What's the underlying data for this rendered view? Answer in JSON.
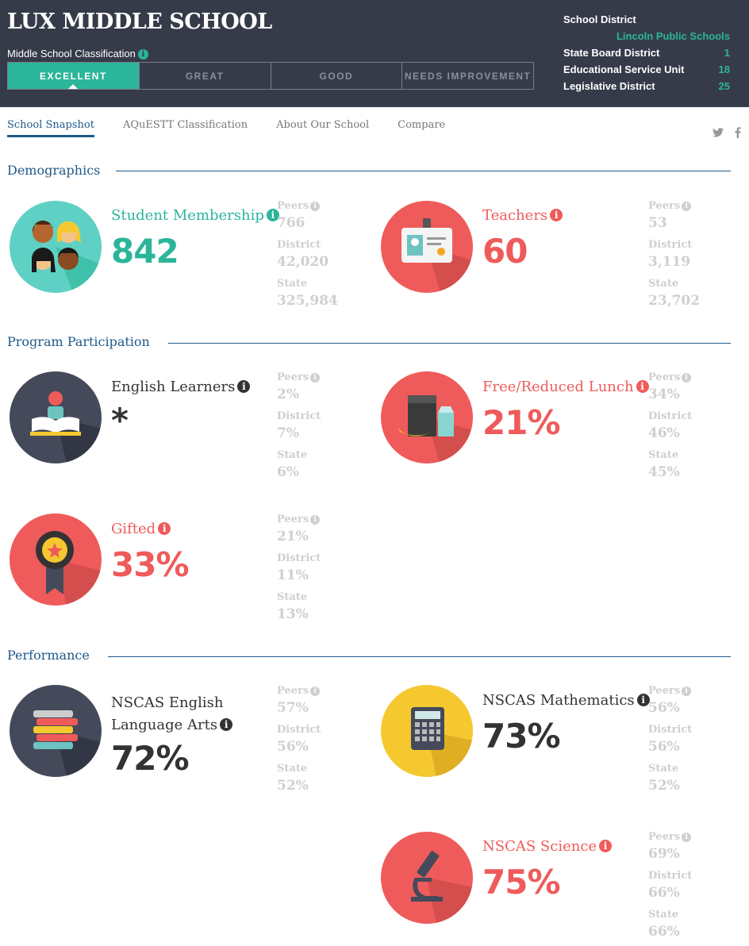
{
  "header": {
    "school_name": "LUX MIDDLE SCHOOL",
    "classification_label": "Middle School Classification",
    "info_glyph": "i",
    "ratings": [
      "EXCELLENT",
      "GREAT",
      "GOOD",
      "NEEDS IMPROVEMENT"
    ],
    "active_rating": "EXCELLENT",
    "district": {
      "school_district_label": "School District",
      "school_district_value": "Lincoln Public Schools",
      "state_board_label": "State Board District",
      "state_board_value": "1",
      "esu_label": "Educational Service Unit",
      "esu_value": "18",
      "legislative_label": "Legislative District",
      "legislative_value": "25"
    }
  },
  "nav": {
    "tabs": [
      "School Snapshot",
      "AQuESTT Classification",
      "About Our School",
      "Compare"
    ],
    "active": "School Snapshot",
    "social": [
      "twitter-icon",
      "facebook-icon"
    ]
  },
  "sections": {
    "demographics": "Demographics",
    "program": "Program Participation",
    "performance": "Performance"
  },
  "comparison_labels": {
    "peers": "Peers",
    "district": "District",
    "state": "State"
  },
  "stats": {
    "membership": {
      "label": "Student Membership",
      "value": "842",
      "peers": "766",
      "district": "42,020",
      "state": "325,984",
      "icon": "students-icon",
      "color": "#2bb59a"
    },
    "teachers": {
      "label": "Teachers",
      "value": "60",
      "peers": "53",
      "district": "3,119",
      "state": "23,702",
      "icon": "id-badge-icon",
      "color": "#ef5b5b"
    },
    "english_learners": {
      "label": "English Learners",
      "value": "*",
      "peers": "2%",
      "district": "7%",
      "state": "6%",
      "icon": "reader-book-icon",
      "color": "#333333"
    },
    "lunch": {
      "label": "Free/Reduced Lunch",
      "value": "21%",
      "peers": "34%",
      "district": "46%",
      "state": "45%",
      "icon": "lunch-bag-icon",
      "color": "#ef5b5b"
    },
    "gifted": {
      "label": "Gifted",
      "value": "33%",
      "peers": "21%",
      "district": "11%",
      "state": "13%",
      "icon": "award-ribbon-icon",
      "color": "#ef5b5b"
    },
    "ela": {
      "label_line1": "NSCAS English",
      "label_line2": "Language Arts",
      "value": "72%",
      "peers": "57%",
      "district": "56%",
      "state": "52%",
      "icon": "books-stack-icon",
      "color": "#333333"
    },
    "math": {
      "label": "NSCAS Mathematics",
      "value": "73%",
      "peers": "56%",
      "district": "56%",
      "state": "52%",
      "icon": "calculator-icon",
      "color": "#333333"
    },
    "science": {
      "label": "NSCAS Science",
      "value": "75%",
      "peers": "69%",
      "district": "66%",
      "state": "66%",
      "icon": "microscope-icon",
      "color": "#ef5b5b"
    }
  }
}
